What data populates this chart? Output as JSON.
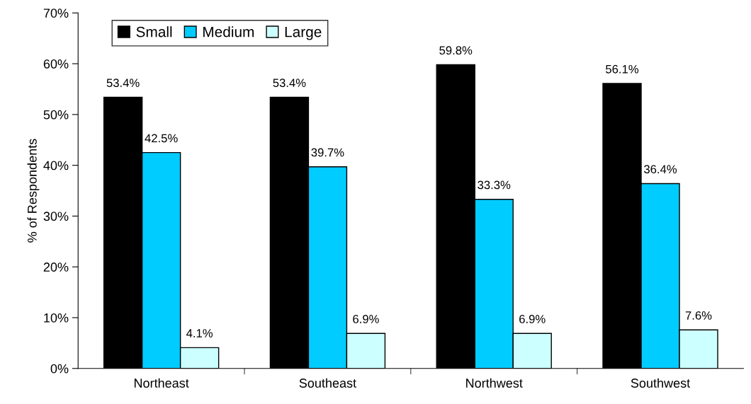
{
  "chart_data": {
    "type": "bar",
    "ylabel": "% of Respondents",
    "categories": [
      "Northeast",
      "Southeast",
      "Northwest",
      "Southwest"
    ],
    "series": [
      {
        "name": "Small",
        "color": "#000000",
        "values": [
          53.4,
          53.4,
          59.8,
          56.1
        ],
        "value_labels": [
          "53.4%",
          "53.4%",
          "59.8%",
          "56.1%"
        ]
      },
      {
        "name": "Medium",
        "color": "#00ccff",
        "values": [
          42.5,
          39.7,
          33.3,
          36.4
        ],
        "value_labels": [
          "42.5%",
          "39.7%",
          "33.3%",
          "36.4%"
        ]
      },
      {
        "name": "Large",
        "color": "#ccffff",
        "values": [
          4.1,
          6.9,
          6.9,
          7.6
        ],
        "value_labels": [
          "4.1%",
          "6.9%",
          "6.9%",
          "7.6%"
        ]
      }
    ],
    "ylim": [
      0,
      70
    ],
    "yticks": [
      {
        "value": 0,
        "label": "0%"
      },
      {
        "value": 10,
        "label": "10%"
      },
      {
        "value": 20,
        "label": "20%"
      },
      {
        "value": 30,
        "label": "30%"
      },
      {
        "value": 40,
        "label": "40%"
      },
      {
        "value": 50,
        "label": "50%"
      },
      {
        "value": 60,
        "label": "60%"
      },
      {
        "value": 70,
        "label": "70%"
      }
    ],
    "legend": "top left",
    "grid": false
  }
}
